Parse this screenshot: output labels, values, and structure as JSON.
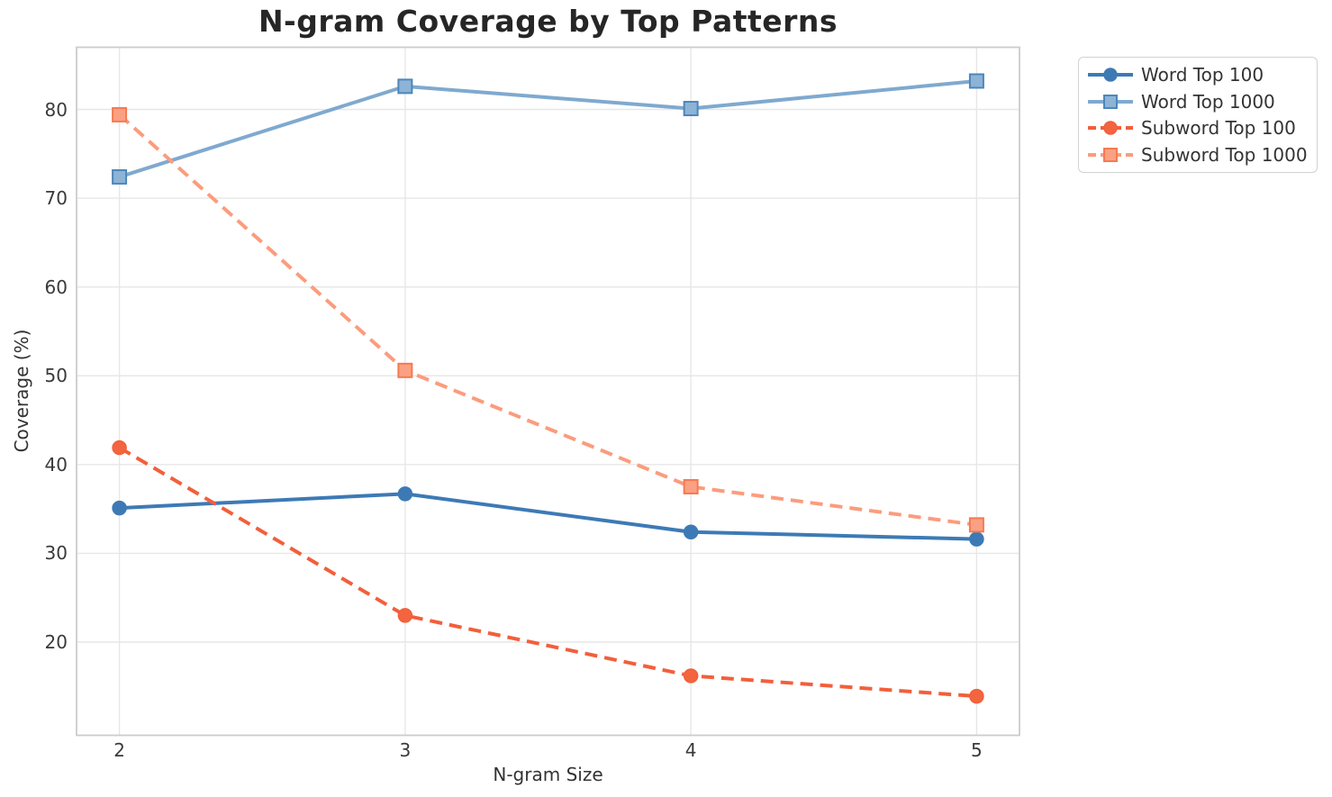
{
  "chart_data": {
    "type": "line",
    "title": "N-gram Coverage by Top Patterns",
    "xlabel": "N-gram Size",
    "ylabel": "Coverage (%)",
    "x": [
      2,
      3,
      4,
      5
    ],
    "xticks": [
      "2",
      "3",
      "4",
      "5"
    ],
    "yticks": [
      "80",
      "70",
      "60",
      "50",
      "40",
      "30",
      "20"
    ],
    "ytick_values": [
      80,
      70,
      60,
      50,
      40,
      30,
      20
    ],
    "xlim": [
      1.85,
      5.15
    ],
    "ylim": [
      9.5,
      87
    ],
    "grid": true,
    "legend_position": "top-right outside plot",
    "series": [
      {
        "name": "Word Top 100",
        "values": [
          35.1,
          36.7,
          32.4,
          31.6
        ],
        "color": "#3d7ab5",
        "marker": "circle",
        "marker_fill": "#3d7ab5",
        "marker_edge": "#3d7ab5",
        "line_style": "solid"
      },
      {
        "name": "Word Top 1000",
        "values": [
          72.4,
          82.6,
          80.1,
          83.2
        ],
        "color": "#7fa9cf",
        "marker": "square",
        "marker_fill": "#8db3d6",
        "marker_edge": "#4e86ba",
        "line_style": "solid"
      },
      {
        "name": "Subword Top 100",
        "values": [
          41.9,
          23.0,
          16.2,
          13.9
        ],
        "color": "#f25f3b",
        "marker": "circle",
        "marker_fill": "#f2653f",
        "marker_edge": "#f25f3b",
        "line_style": "dashed"
      },
      {
        "name": "Subword Top 1000",
        "values": [
          79.4,
          50.6,
          37.5,
          33.2
        ],
        "color": "#fb9c7d",
        "marker": "square",
        "marker_fill": "#fba183",
        "marker_edge": "#f57a52",
        "line_style": "dashed"
      }
    ],
    "style": {
      "grid_color": "#e7e7e7",
      "spine_color": "#cccccc",
      "background": "#ffffff"
    }
  }
}
